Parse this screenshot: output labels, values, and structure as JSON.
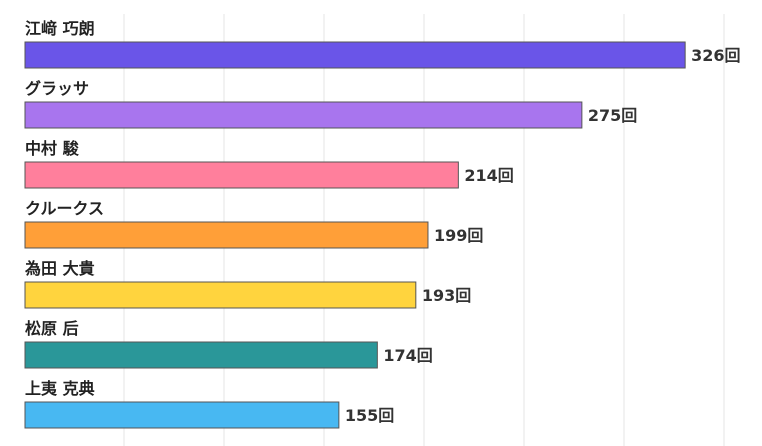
{
  "chart_data": {
    "type": "bar",
    "orientation": "horizontal",
    "title": "",
    "xlabel": "",
    "ylabel": "",
    "xlim": [
      0,
      350
    ],
    "grid": true,
    "value_suffix": "回",
    "categories": [
      "江﨑 巧朗",
      "グラッサ",
      "中村 駿",
      "クルークス",
      "為田 大貴",
      "松原 后",
      "上夷 克典"
    ],
    "values": [
      326,
      275,
      214,
      199,
      193,
      174,
      155
    ],
    "colors": [
      "#6a55e8",
      "#a875ee",
      "#ff7f9c",
      "#ff9f38",
      "#ffd43e",
      "#2a9799",
      "#48b8f2"
    ]
  }
}
